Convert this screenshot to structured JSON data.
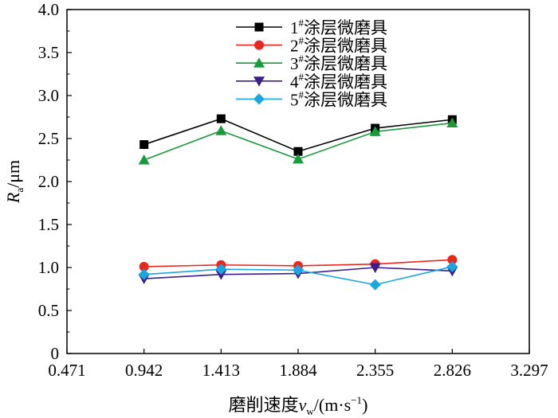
{
  "chart_data": {
    "type": "line",
    "xlabel": {
      "prefix": "磨削速度",
      "var": "v",
      "sub": "w",
      "suffix": "/(m·s",
      "sup": "−1",
      "close": ")"
    },
    "ylabel": {
      "var": "R",
      "sub": "a",
      "suffix": "/μm"
    },
    "x_tick_labels": [
      "0.471",
      "0.942",
      "1.413",
      "1.884",
      "2.355",
      "2.826",
      "3.297"
    ],
    "y_tick_labels": [
      "0",
      "0.5",
      "1.0",
      "1.5",
      "2.0",
      "2.5",
      "3.0",
      "3.5",
      "4.0"
    ],
    "xlim": [
      0.471,
      3.297
    ],
    "ylim": [
      0,
      4.0
    ],
    "x": [
      0.942,
      1.413,
      1.884,
      2.355,
      2.826
    ],
    "grid": false,
    "legend_position": "top-center",
    "series": [
      {
        "num": "1",
        "name": "涂层微磨具",
        "color": "#000000",
        "marker": "square",
        "values": [
          2.43,
          2.73,
          2.35,
          2.62,
          2.72
        ]
      },
      {
        "num": "2",
        "name": "涂层微磨具",
        "color": "#e8281e",
        "marker": "circle",
        "values": [
          1.01,
          1.03,
          1.02,
          1.04,
          1.09
        ]
      },
      {
        "num": "3",
        "name": "涂层微磨具",
        "color": "#1a9a3a",
        "marker": "triangle-up",
        "values": [
          2.25,
          2.59,
          2.26,
          2.58,
          2.68
        ]
      },
      {
        "num": "4",
        "name": "涂层微磨具",
        "color": "#3c1f8c",
        "marker": "triangle-down",
        "values": [
          0.87,
          0.92,
          0.93,
          1.0,
          0.96
        ]
      },
      {
        "num": "5",
        "name": "涂层微磨具",
        "color": "#1aa6e0",
        "marker": "diamond",
        "values": [
          0.92,
          0.98,
          0.97,
          0.8,
          1.01
        ]
      }
    ]
  }
}
